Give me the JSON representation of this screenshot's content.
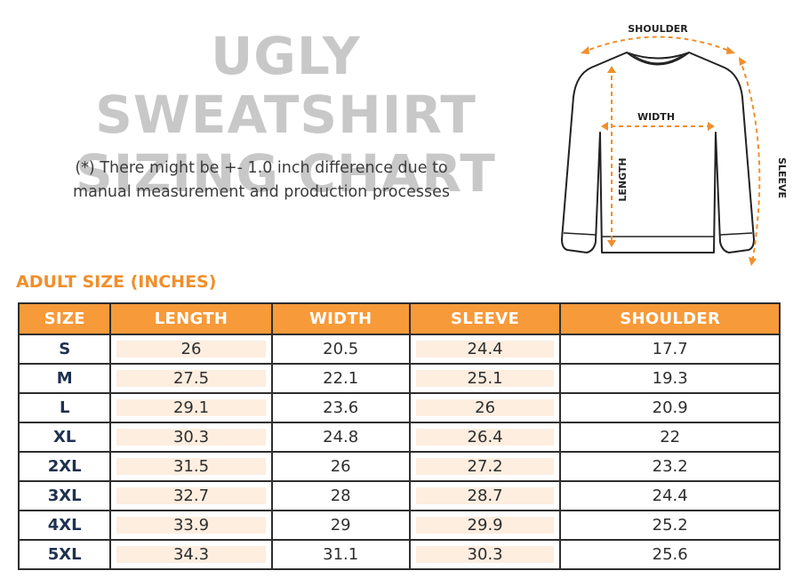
{
  "title": {
    "line1": "UGLY SWEATSHIRT",
    "line2": "SIZING CHART"
  },
  "note": {
    "line1": "(*) There might be +- 1.0 inch difference due to",
    "line2": "manual measurement and production processes"
  },
  "section_label": "ADULT SIZE (INCHES)",
  "diagram": {
    "shoulder_label": "SHOULDER",
    "width_label": "WIDTH",
    "length_label": "LENGTH",
    "sleeve_label": "SLEEVE",
    "accent_color": "#f08f2c"
  },
  "table": {
    "headers": [
      "SIZE",
      "LENGTH",
      "WIDTH",
      "SLEEVE",
      "SHOULDER"
    ],
    "rows": [
      [
        "S",
        "26",
        "20.5",
        "24.4",
        "17.7"
      ],
      [
        "M",
        "27.5",
        "22.1",
        "25.1",
        "19.3"
      ],
      [
        "L",
        "29.1",
        "23.6",
        "26",
        "20.9"
      ],
      [
        "XL",
        "30.3",
        "24.8",
        "26.4",
        "22"
      ],
      [
        "2XL",
        "31.5",
        "26",
        "27.2",
        "23.2"
      ],
      [
        "3XL",
        "32.7",
        "28",
        "28.7",
        "24.4"
      ],
      [
        "4XL",
        "33.9",
        "29",
        "29.9",
        "25.2"
      ],
      [
        "5XL",
        "34.3",
        "31.1",
        "30.3",
        "25.6"
      ]
    ]
  },
  "colors": {
    "header_bg": "#f79a3a",
    "shaded_cell": "#fdeee0",
    "title_gray": "#c8c8c8",
    "size_text": "#1f3150"
  }
}
